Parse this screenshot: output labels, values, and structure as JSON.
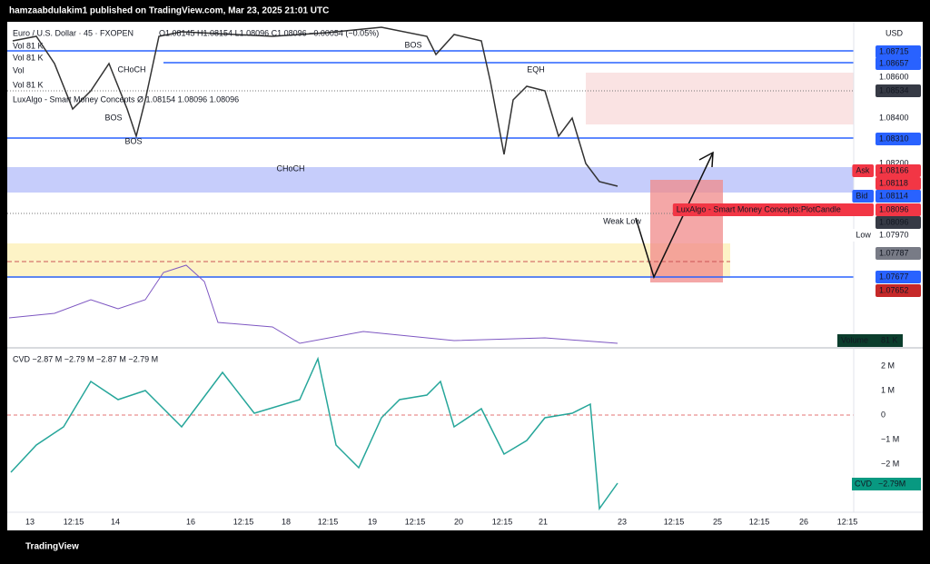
{
  "header": {
    "title": "hamzaabdulakim1 published on TradingView.com, Mar 23, 2025 21:01 UTC"
  },
  "legend": {
    "symbol": "Euro / U.S. Dollar · 45 · FXOPEN",
    "ohlc": "O1.08145 H1.08154 L1.08096 C1.08096 −0.00054 (−0.05%)",
    "vol1": "Vol 81 K",
    "vol2": "Vol 81 K",
    "vol3": "Vol",
    "vol4": "Vol 81 K",
    "luxalgo": "LuxAlgo - Smart Money Concepts Ø 1.08154 1.08096 1.08096",
    "cvd": "CVD −2.87 M −2.79 M −2.87 M −2.79 M"
  },
  "price_axis": {
    "currency": "USD",
    "labels": [
      {
        "text": "1.08715"
      },
      {
        "text": "1.08657"
      },
      {
        "text": "1.08600"
      },
      {
        "text": "1.08534"
      },
      {
        "text": "1.08400"
      },
      {
        "text": "1.08310"
      },
      {
        "text": "1.08200"
      },
      {
        "tag": "Ask",
        "text": "1.08166"
      },
      {
        "text": "1.08118"
      },
      {
        "tag": "Bid",
        "text": "1.08114"
      },
      {
        "tag": "LuxAlgo - Smart Money Concepts:PlotCandle",
        "text": "1.08096"
      },
      {
        "text": "1.08096"
      },
      {
        "tag": "Low",
        "text": "1.07970"
      },
      {
        "text": "1.07787"
      },
      {
        "text": "1.07677"
      },
      {
        "text": "1.07652"
      }
    ],
    "volume": {
      "tag": "Volume",
      "text": "81 K"
    }
  },
  "cvd_axis": {
    "labels": [
      "2 M",
      "1 M",
      "0",
      "−1 M",
      "−2 M"
    ],
    "current": {
      "tag": "CVD",
      "text": "−2.79M"
    }
  },
  "time_axis": {
    "labels": [
      "13",
      "12:15",
      "14",
      "16",
      "12:15",
      "18",
      "12:15",
      "19",
      "12:15",
      "20",
      "12:15",
      "21",
      "23",
      "12:15",
      "25",
      "12:15",
      "26",
      "12:15"
    ]
  },
  "annotations": {
    "choch_main": "CHoCH",
    "choch_small": "CHoCH",
    "bos1": "BOS",
    "bos2": "BOS",
    "bos3": "BOS",
    "eqh": "EQH",
    "weak_low": "Weak Low"
  },
  "footer": {
    "brand": "TradingView"
  }
}
